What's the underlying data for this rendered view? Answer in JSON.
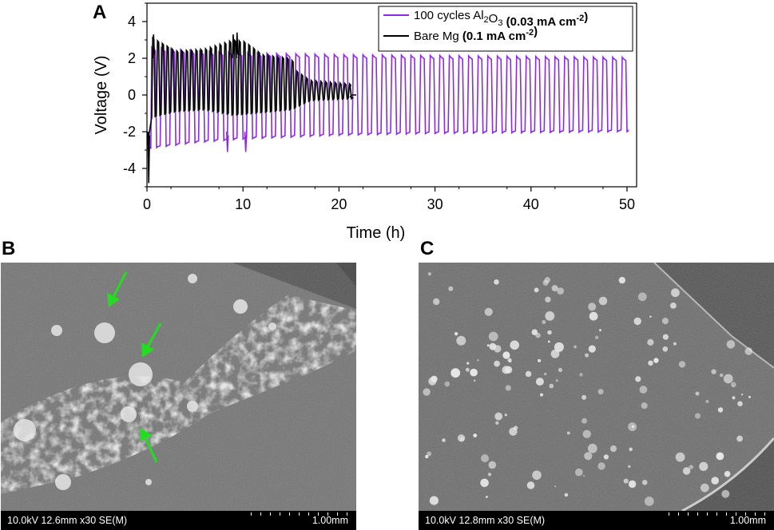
{
  "panels": {
    "a": "A",
    "b": "B",
    "c": "C"
  },
  "chart_data": {
    "type": "line",
    "xlabel": "Time (h)",
    "ylabel": "Voltage (V)",
    "xlim": [
      0,
      51
    ],
    "ylim": [
      -5,
      5
    ],
    "xticks": [
      0,
      10,
      20,
      30,
      40,
      50
    ],
    "yticks": [
      -4,
      -2,
      0,
      2,
      4
    ],
    "grid": false,
    "legend_position": "top-right",
    "legend": [
      {
        "pre": "100 cycles Al",
        "sub1": "2",
        "mid": "O",
        "sub2": "3",
        "bold_pre": " (0.03 mA cm",
        "sup": "-2",
        "bold_post": ")"
      },
      {
        "pre": "Bare Mg ",
        "sub1": "",
        "mid": "",
        "sub2": "",
        "bold_pre": "(0.1 mA cm",
        "sup": "-2",
        "bold_post": ")"
      }
    ],
    "series": [
      {
        "color": "#8a2be2",
        "period_h": 1.0,
        "start_h": 0.5,
        "end_h": 50.2,
        "upper": [
          [
            0.5,
            2.6
          ],
          [
            5,
            2.4
          ],
          [
            10,
            2.3
          ],
          [
            20,
            2.2
          ],
          [
            30,
            2.15
          ],
          [
            40,
            2.1
          ],
          [
            50.2,
            2.05
          ]
        ],
        "lower": [
          [
            0.5,
            -2.9
          ],
          [
            5,
            -2.6
          ],
          [
            10,
            -2.4
          ],
          [
            20,
            -2.2
          ],
          [
            30,
            -2.1
          ],
          [
            40,
            -2.05
          ],
          [
            50.2,
            -2.0
          ]
        ],
        "spikes": [
          [
            8.3,
            -3.1
          ],
          [
            10.2,
            -3.1
          ]
        ]
      },
      {
        "color": "#000000",
        "period_h": 0.5,
        "start_h": 0.6,
        "end_h": 21.3,
        "tail_end_h": 21.8,
        "upper": [
          [
            0.6,
            3.1
          ],
          [
            3,
            2.4
          ],
          [
            6,
            2.5
          ],
          [
            9,
            3.0
          ],
          [
            10.2,
            2.9
          ],
          [
            12,
            2.2
          ],
          [
            15,
            2.0
          ],
          [
            15.6,
            1.3
          ],
          [
            17,
            0.8
          ],
          [
            21.3,
            0.6
          ]
        ],
        "lower": [
          [
            0.6,
            -1.2
          ],
          [
            3,
            -0.9
          ],
          [
            6,
            -0.8
          ],
          [
            9,
            -1.1
          ],
          [
            11,
            -1.0
          ],
          [
            15,
            -0.8
          ],
          [
            17,
            -0.3
          ],
          [
            21.3,
            -0.2
          ]
        ],
        "spikes": [
          [
            0.6,
            3.3
          ],
          [
            8.9,
            3.3
          ],
          [
            9.3,
            3.4
          ],
          [
            0.1,
            -4.8
          ]
        ]
      }
    ]
  },
  "sem": {
    "b": {
      "info": "10.0kV 12.6mm x30 SE(M)",
      "scale": "1.00mm"
    },
    "c": {
      "info": "10.0kV 12.8mm x30 SE(M)",
      "scale": "1.00mm"
    }
  },
  "colors": {
    "arrow": "#22dd22",
    "sem_bg": "#6e6e6e"
  }
}
